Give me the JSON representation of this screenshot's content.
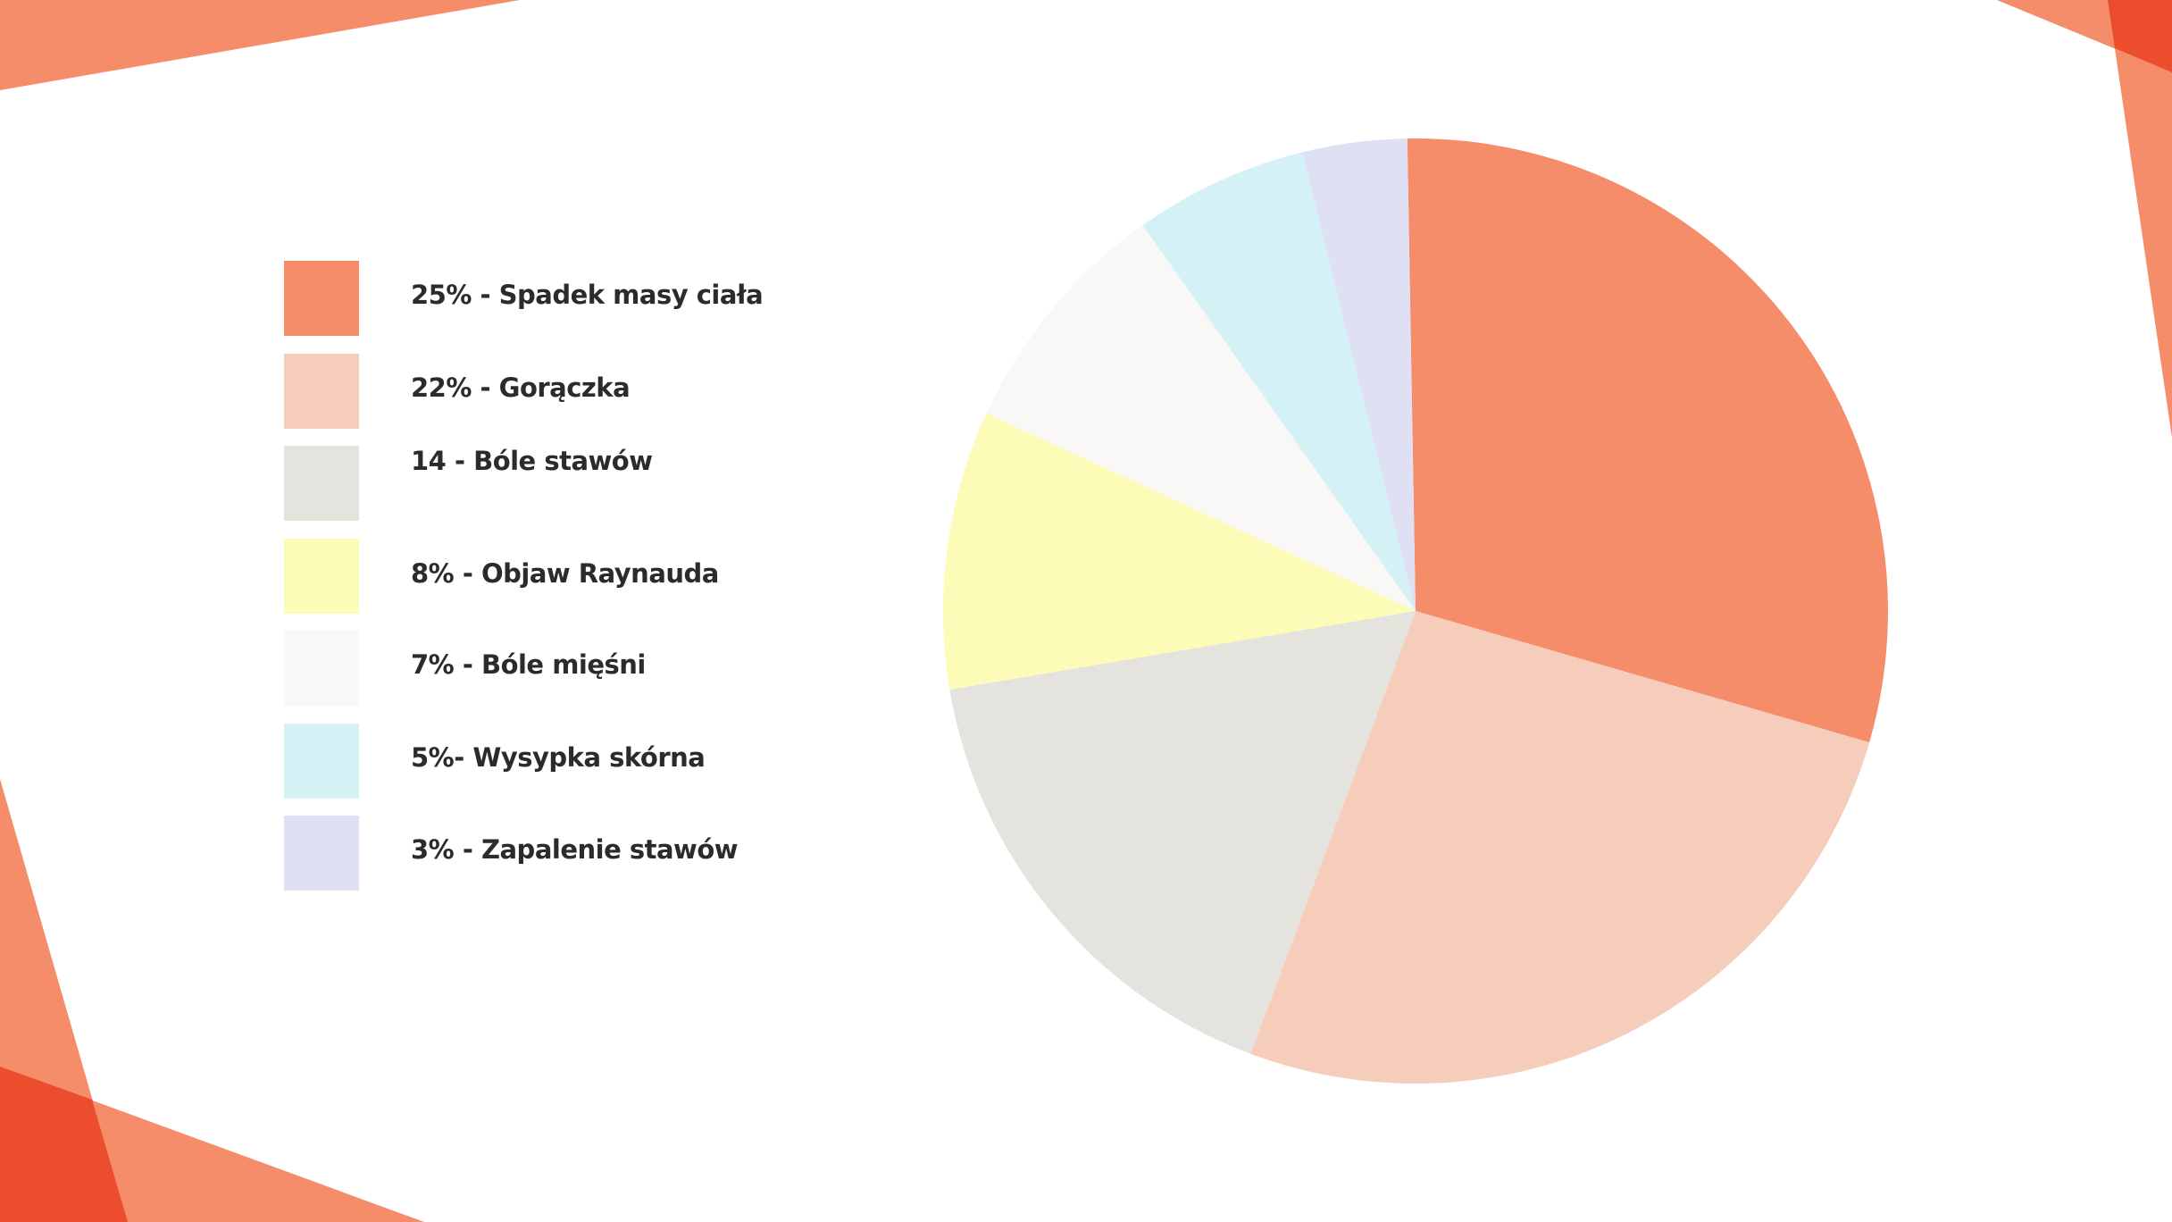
{
  "colors": {
    "accent_light": "#F58C6A",
    "accent_dark": "#EB4D2D",
    "text": "#2B2B2B"
  },
  "chart_data": {
    "type": "pie",
    "title": "",
    "start_angle_deg": -1,
    "direction": "clockwise",
    "legend_placement": "left",
    "slices": [
      {
        "label": "25% - Spadek masy ciała",
        "value": 25,
        "color": "#F58C6A"
      },
      {
        "label": "22% - Gorączka",
        "value": 22,
        "color": "#F6CCBA"
      },
      {
        "label": "14 - Bóle stawów",
        "value": 14,
        "color": "#E4E3DE"
      },
      {
        "label": "8% - Objaw Raynauda",
        "value": 8,
        "color": "#FCFBB8"
      },
      {
        "label": "7% - Bóle mięśni",
        "value": 7,
        "color": "#F9F8F6"
      },
      {
        "label": "5%- Wysypka skórna",
        "value": 5,
        "color": "#D4F1F6"
      },
      {
        "label": "3% - Zapalenie stawów",
        "value": 3,
        "color": "#E0E0F5"
      }
    ]
  }
}
